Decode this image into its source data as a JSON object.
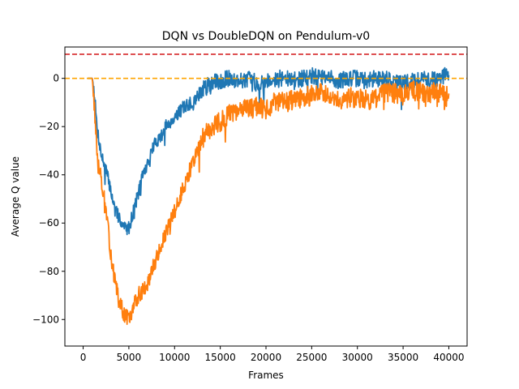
{
  "chart_data": {
    "type": "line",
    "title": "DQN vs DoubleDQN on Pendulum-v0",
    "xlabel": "Frames",
    "ylabel": "Average Q value",
    "xlim": [
      -2000,
      42000
    ],
    "ylim": [
      -111,
      13
    ],
    "xticks": [
      0,
      5000,
      10000,
      15000,
      20000,
      25000,
      30000,
      35000,
      40000
    ],
    "xtick_labels": [
      "0",
      "5000",
      "10000",
      "15000",
      "20000",
      "25000",
      "30000",
      "35000",
      "40000"
    ],
    "yticks": [
      0,
      -20,
      -40,
      -60,
      -80,
      -100
    ],
    "ytick_labels": [
      "0",
      "−20",
      "−40",
      "−60",
      "−80",
      "−100"
    ],
    "grid": false,
    "series": [
      {
        "name": "DQN",
        "color": "#1f77b4",
        "x": [
          500,
          1000,
          1200,
          1500,
          2000,
          2500,
          3000,
          3500,
          4000,
          4500,
          5000,
          5500,
          6000,
          6500,
          7000,
          7500,
          8000,
          8500,
          9000,
          10000,
          11000,
          12000,
          13000,
          14000,
          15000,
          16000,
          17000,
          18000,
          19000,
          20000,
          21000,
          22000,
          23000,
          24000,
          25000,
          26000,
          27000,
          28000,
          29000,
          30000,
          31000,
          32000,
          33000,
          34000,
          35000,
          36000,
          37000,
          38000,
          39000,
          40000
        ],
        "y": [
          0,
          0,
          -5,
          -20,
          -32,
          -38,
          -46,
          -55,
          -58,
          -62,
          -62,
          -55,
          -48,
          -40,
          -36,
          -30,
          -26,
          -24,
          -20,
          -16,
          -12,
          -10,
          -5,
          -2,
          -1,
          0,
          -1,
          0,
          -2,
          -1,
          0,
          0,
          -1,
          0,
          1,
          0,
          0,
          -1,
          0,
          0,
          -1,
          0,
          0,
          -1,
          -2,
          -1,
          0,
          -1,
          0,
          2
        ],
        "noise": 2.8,
        "seed": 7
      },
      {
        "name": "DoubleDQN",
        "color": "#ff7f0e",
        "x": [
          500,
          1000,
          1200,
          1500,
          2000,
          2500,
          3000,
          3500,
          4000,
          4500,
          5000,
          5500,
          6000,
          6500,
          7000,
          7500,
          8000,
          8500,
          9000,
          10000,
          11000,
          12000,
          13000,
          14000,
          15000,
          16000,
          17000,
          18000,
          19000,
          20000,
          21000,
          22000,
          23000,
          24000,
          25000,
          26000,
          27000,
          28000,
          29000,
          30000,
          31000,
          32000,
          33000,
          34000,
          35000,
          36000,
          37000,
          38000,
          39000,
          40000
        ],
        "y": [
          0,
          0,
          -10,
          -30,
          -42,
          -55,
          -72,
          -85,
          -93,
          -98,
          -100,
          -95,
          -90,
          -88,
          -85,
          -80,
          -75,
          -70,
          -65,
          -55,
          -45,
          -35,
          -25,
          -20,
          -18,
          -15,
          -14,
          -12,
          -12,
          -13,
          -10,
          -10,
          -9,
          -8,
          -7,
          -6,
          -6,
          -9,
          -8,
          -8,
          -9,
          -8,
          -6,
          -6,
          -7,
          -5,
          -6,
          -6,
          -6,
          -8
        ],
        "noise": 3.4,
        "seed": 13
      }
    ],
    "reference_lines": [
      {
        "y": 10,
        "color": "#d62728",
        "style": "dashed"
      },
      {
        "y": 0,
        "color": "#ffa500",
        "style": "dashed"
      }
    ]
  }
}
